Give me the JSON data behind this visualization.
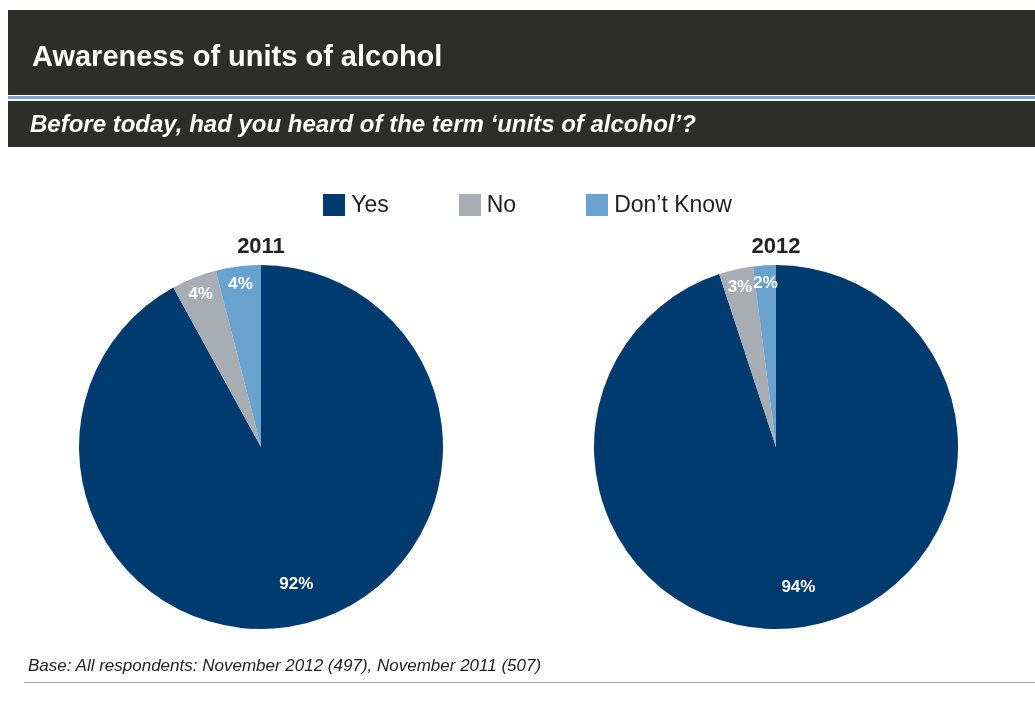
{
  "chart_data": [
    {
      "type": "other",
      "title": "Awareness of units of alcohol",
      "subtitle": "Before today, had you heard of the term ‘units of alcohol’?",
      "annotations": [
        "Base: All respondents:  November 2012 (497), November 2011 (507)"
      ]
    },
    {
      "type": "pie",
      "title": "2011",
      "categories": [
        "Yes",
        "No",
        "Don’t Know"
      ],
      "values": [
        92,
        4,
        4
      ],
      "value_labels": [
        "92%",
        "4%",
        "4%"
      ],
      "colors": [
        "#003b6f",
        "#a7adb3",
        "#6aa2cf"
      ],
      "legend": "top"
    },
    {
      "type": "pie",
      "title": "2012",
      "categories": [
        null,
        null,
        null
      ],
      "values": [
        94,
        3,
        2
      ],
      "value_labels": [
        "94%",
        "3%",
        "2%"
      ],
      "colors": [
        "#003b6f",
        "#a7adb3",
        "#6aa2cf"
      ]
    }
  ]
}
